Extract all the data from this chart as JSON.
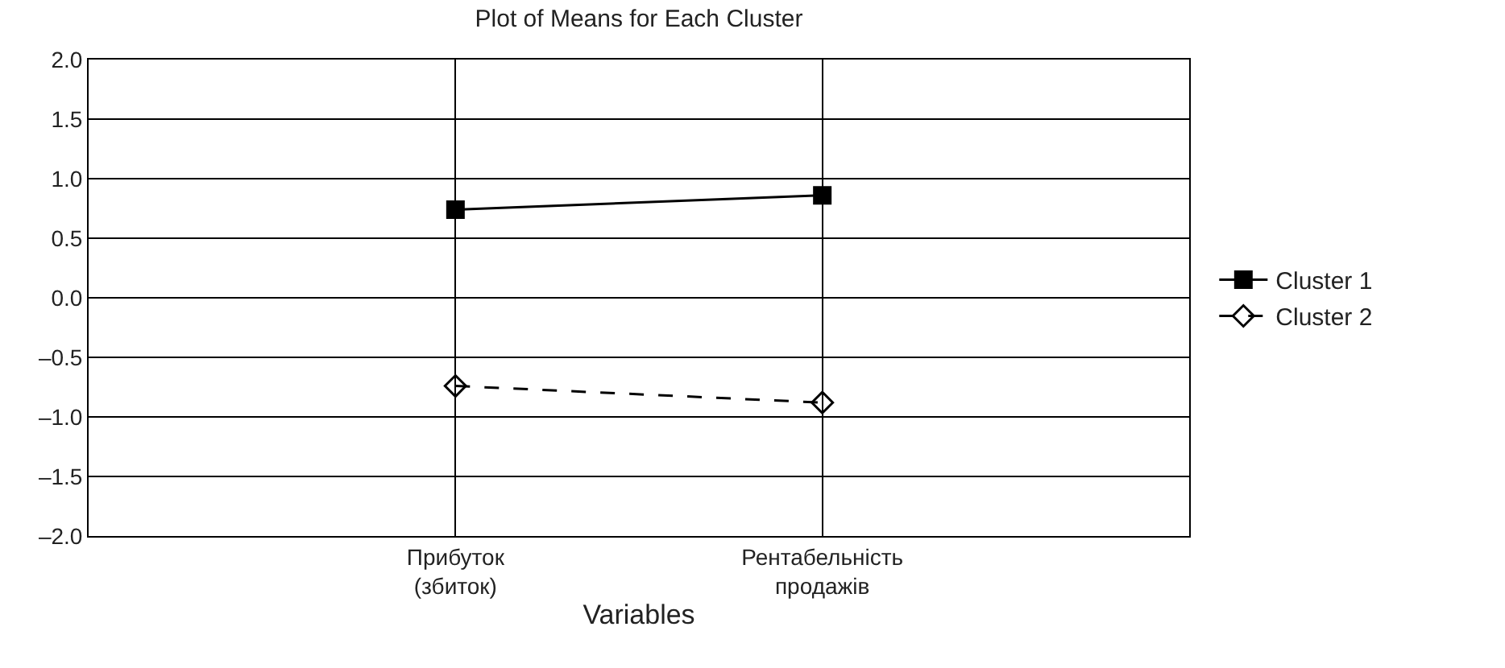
{
  "chart_data": {
    "type": "line",
    "title": "Plot of Means for Each Cluster",
    "xlabel": "Variables",
    "categories": [
      "Прибуток\n(збиток)",
      "Рентабельність\nпродажів"
    ],
    "series": [
      {
        "name": "Cluster 1",
        "color": "#000000",
        "values": [
          0.74,
          0.86
        ],
        "marker": "square",
        "line_style": "solid"
      },
      {
        "name": "Cluster 2",
        "color": "#000000",
        "values": [
          -0.74,
          -0.88
        ],
        "marker": "diamond",
        "line_style": "dashed"
      }
    ],
    "ylim": [
      -2.0,
      2.0
    ],
    "yticks": [
      {
        "value": -2.0,
        "label": "–2.0"
      },
      {
        "value": -1.5,
        "label": "–1.5"
      },
      {
        "value": -1.0,
        "label": "–1.0"
      },
      {
        "value": -0.5,
        "label": "–0.5"
      },
      {
        "value": 0.0,
        "label": "0.0"
      },
      {
        "value": 0.5,
        "label": "0.5"
      },
      {
        "value": 1.0,
        "label": "1.0"
      },
      {
        "value": 1.5,
        "label": "1.5"
      },
      {
        "value": 2.0,
        "label": "2.0"
      }
    ],
    "grid": true,
    "legend": "right"
  }
}
